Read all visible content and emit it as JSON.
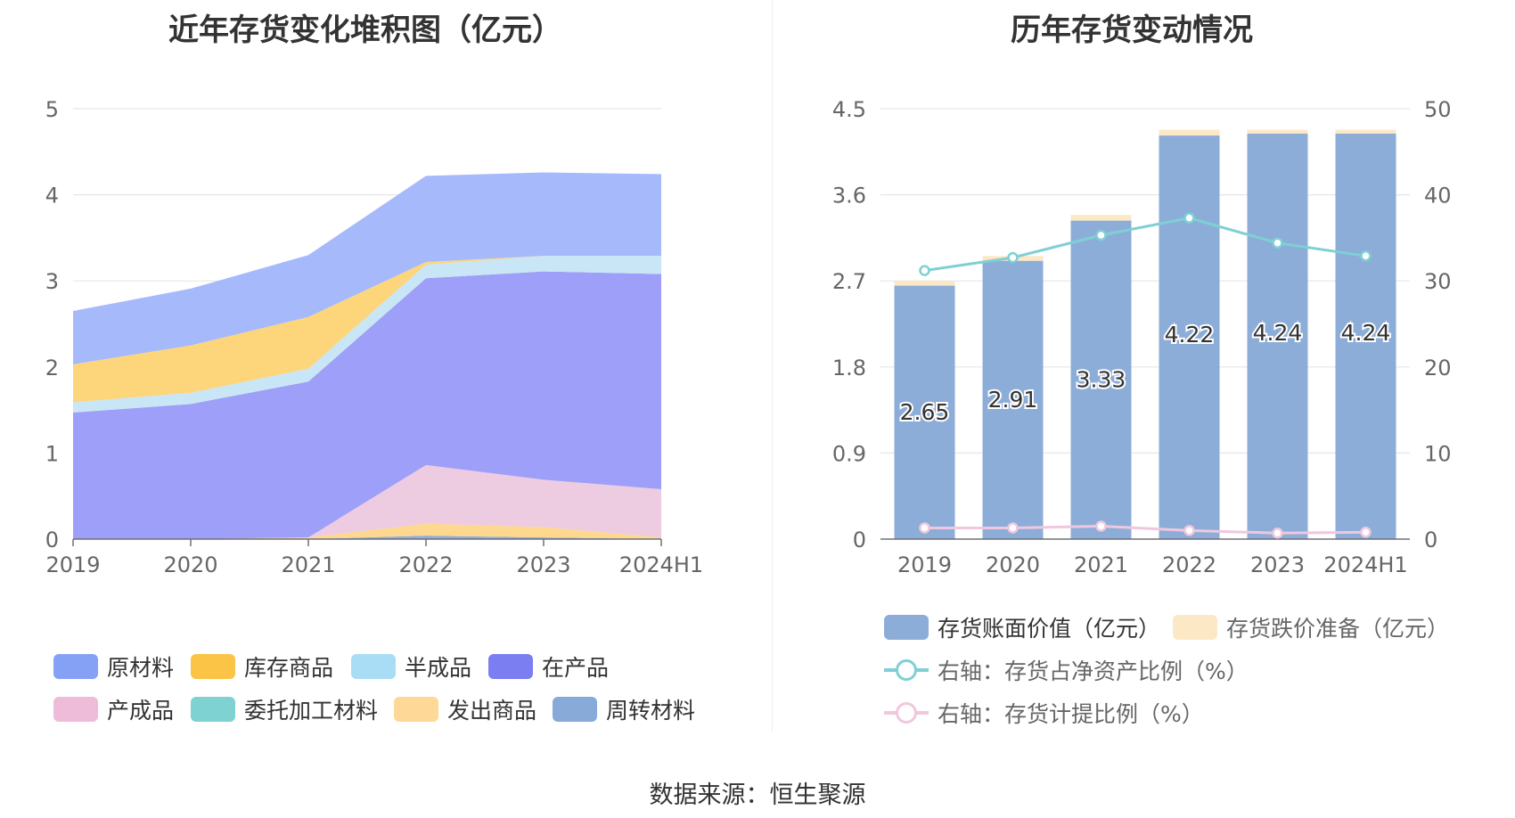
{
  "titles": {
    "left": "近年存货变化堆积图（亿元）",
    "right": "历年存货变动情况"
  },
  "source": "数据来源：恒生聚源",
  "chart_data": [
    {
      "type": "area",
      "stacked": true,
      "title": "近年存货变化堆积图（亿元）",
      "x": [
        "2019",
        "2020",
        "2021",
        "2022",
        "2023",
        "2024H1"
      ],
      "ylim": [
        0,
        5
      ],
      "yticks": [
        0,
        1,
        2,
        3,
        4,
        5
      ],
      "grid": true,
      "legend_position": "bottom",
      "series": [
        {
          "name": "周转材料",
          "color": "#8eacdc",
          "values": [
            0,
            0,
            0,
            0.04,
            0.02,
            0
          ]
        },
        {
          "name": "发出商品",
          "color": "#fdd88e",
          "values": [
            0,
            0,
            0.02,
            0.14,
            0.12,
            0.02
          ]
        },
        {
          "name": "委托加工材料",
          "color": "#80d4d2",
          "values": [
            0,
            0,
            0,
            0,
            0,
            0
          ]
        },
        {
          "name": "产成品",
          "color": "#edcbe0",
          "values": [
            0,
            0,
            0,
            0.68,
            0.55,
            0.56
          ]
        },
        {
          "name": "在产品",
          "color": "#9e9ff8",
          "values": [
            1.47,
            1.57,
            1.81,
            2.17,
            2.42,
            2.5
          ]
        },
        {
          "name": "半成品",
          "color": "#c8e6f5",
          "values": [
            0.12,
            0.13,
            0.15,
            0.16,
            0.18,
            0.21
          ]
        },
        {
          "name": "库存商品",
          "color": "#fdd57a",
          "values": [
            0.44,
            0.55,
            0.6,
            0.03,
            0,
            0
          ]
        },
        {
          "name": "原材料",
          "color": "#a6b9fb",
          "values": [
            0.62,
            0.66,
            0.72,
            1.0,
            0.97,
            0.95
          ]
        }
      ]
    },
    {
      "type": "bar",
      "stacked": true,
      "title": "历年存货变动情况",
      "categories": [
        "2019",
        "2020",
        "2021",
        "2022",
        "2023",
        "2024H1"
      ],
      "ylim": [
        0,
        4.5
      ],
      "yticks": [
        0,
        0.9,
        1.8,
        2.7,
        3.6,
        4.5
      ],
      "y2lim": [
        0,
        50
      ],
      "y2ticks": [
        0,
        10,
        20,
        30,
        40,
        50
      ],
      "grid": true,
      "legend_position": "bottom",
      "series": [
        {
          "name": "存货账面价值（亿元）",
          "kind": "bar",
          "color": "#8dadd9",
          "values": [
            2.65,
            2.91,
            3.33,
            4.22,
            4.24,
            4.24
          ],
          "labels": [
            "2.65",
            "2.91",
            "3.33",
            "4.22",
            "4.24",
            "4.24"
          ]
        },
        {
          "name": "存货跌价准备（亿元）",
          "kind": "bar",
          "color": "#fde8c6",
          "values": [
            0.05,
            0.05,
            0.06,
            0.06,
            0.04,
            0.04
          ]
        },
        {
          "name": "右轴：存货占净资产比例（%）",
          "kind": "line",
          "axis": "right",
          "color": "#7ed0d4",
          "values": [
            31.2,
            32.7,
            35.3,
            37.3,
            34.4,
            32.9
          ]
        },
        {
          "name": "右轴：存货计提比例（%）",
          "kind": "line",
          "axis": "right",
          "color": "#f0c7de",
          "values": [
            1.3,
            1.3,
            1.5,
            1.0,
            0.7,
            0.8
          ]
        }
      ]
    }
  ]
}
